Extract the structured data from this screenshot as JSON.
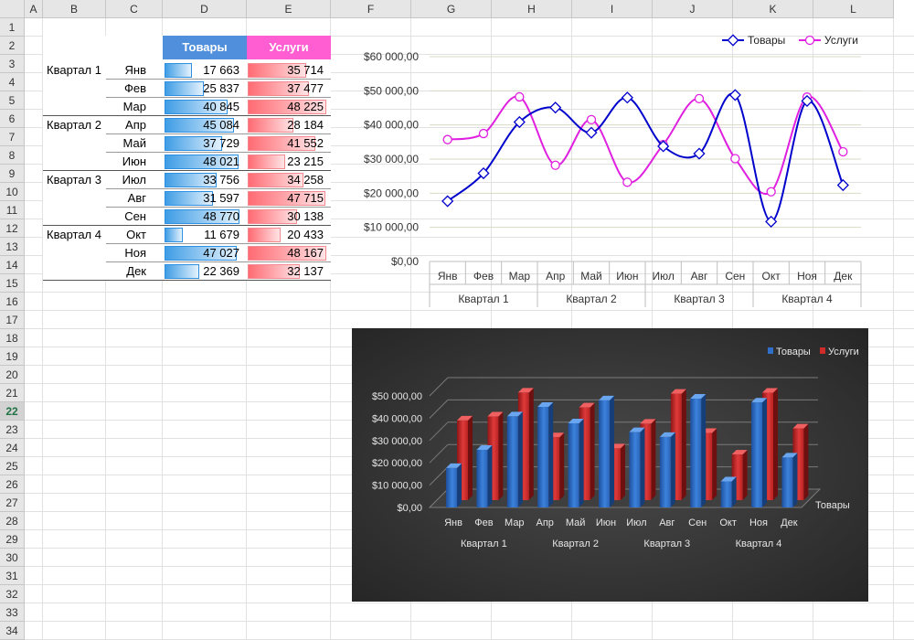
{
  "columns": [
    "A",
    "B",
    "C",
    "D",
    "E",
    "F",
    "G",
    "H",
    "I",
    "J",
    "K",
    "L"
  ],
  "rows": [
    "1",
    "2",
    "3",
    "4",
    "5",
    "6",
    "7",
    "8",
    "9",
    "10",
    "11",
    "12",
    "13",
    "14",
    "15",
    "16",
    "17",
    "18",
    "19",
    "20",
    "21",
    "22",
    "23",
    "24",
    "25",
    "26",
    "27",
    "28",
    "29",
    "30",
    "31",
    "32",
    "33",
    "34"
  ],
  "selected_row": "22",
  "table": {
    "header_goods": "Товары",
    "header_services": "Услуги",
    "quarters": [
      "Квартал 1",
      "Квартал 2",
      "Квартал 3",
      "Квартал 4"
    ],
    "months": [
      "Янв",
      "Фев",
      "Мар",
      "Апр",
      "Май",
      "Июн",
      "Июл",
      "Авг",
      "Сен",
      "Окт",
      "Ноя",
      "Дек"
    ],
    "goods_text": [
      "17 663",
      "25 837",
      "40 845",
      "45 084",
      "37 729",
      "48 021",
      "33 756",
      "31 597",
      "48 770",
      "11 679",
      "47 027",
      "22 369"
    ],
    "services_text": [
      "35 714",
      "37 477",
      "48 225",
      "28 184",
      "41 552",
      "23 215",
      "34 258",
      "47 715",
      "30 138",
      "20 433",
      "48 167",
      "32 137"
    ],
    "goods": [
      17663,
      25837,
      40845,
      45084,
      37729,
      48021,
      33756,
      31597,
      48770,
      11679,
      47027,
      22369
    ],
    "services": [
      35714,
      37477,
      48225,
      28184,
      41552,
      23215,
      34258,
      47715,
      30138,
      20433,
      48167,
      32137
    ],
    "colors": {
      "goods_header": "#4f8fdb",
      "services_header": "#ff5ed3",
      "goods_bar": "#3f9de5",
      "services_bar": "#ff6b73"
    }
  },
  "chart_data": [
    {
      "type": "line",
      "categories": [
        "Янв",
        "Фев",
        "Мар",
        "Апр",
        "Май",
        "Июн",
        "Июл",
        "Авг",
        "Сен",
        "Окт",
        "Ноя",
        "Дек"
      ],
      "category_groups": [
        "Квартал 1",
        "Квартал 2",
        "Квартал 3",
        "Квартал 4"
      ],
      "series": [
        {
          "name": "Товары",
          "color": "#0000cc",
          "values": [
            17663,
            25837,
            40845,
            45084,
            37729,
            48021,
            33756,
            31597,
            48770,
            11679,
            47027,
            22369
          ]
        },
        {
          "name": "Услуги",
          "color": "#e020e0",
          "values": [
            35714,
            37477,
            48225,
            28184,
            41552,
            23215,
            34258,
            47715,
            30138,
            20433,
            48167,
            32137
          ]
        }
      ],
      "ylim": [
        0,
        60000
      ],
      "ytick_labels": [
        "$0,00",
        "$10 000,00",
        "$20 000,00",
        "$30 000,00",
        "$40 000,00",
        "$50 000,00",
        "$60 000,00"
      ],
      "legend": "top-right",
      "grid": true,
      "smooth": true
    },
    {
      "type": "bar",
      "style": "3d-clustered",
      "categories": [
        "Янв",
        "Фев",
        "Мар",
        "Апр",
        "Май",
        "Июн",
        "Июл",
        "Авг",
        "Сен",
        "Окт",
        "Ноя",
        "Дек"
      ],
      "category_groups": [
        "Квартал 1",
        "Квартал 2",
        "Квартал 3",
        "Квартал 4"
      ],
      "series": [
        {
          "name": "Товары",
          "color": "#2f6fc9",
          "values": [
            17663,
            25837,
            40845,
            45084,
            37729,
            48021,
            33756,
            31597,
            48770,
            11679,
            47027,
            22369
          ]
        },
        {
          "name": "Услуги",
          "color": "#d02b2b",
          "values": [
            35714,
            37477,
            48225,
            28184,
            41552,
            23215,
            34258,
            47715,
            30138,
            20433,
            48167,
            32137
          ]
        }
      ],
      "ylim": [
        0,
        50000
      ],
      "ytick_labels": [
        "$0,00",
        "$10 000,00",
        "$20 000,00",
        "$30 000,00",
        "$40 000,00",
        "$50 000,00"
      ],
      "depth_axis_label": "Товары",
      "legend": "top-right",
      "background": "#3a3a3a"
    }
  ]
}
